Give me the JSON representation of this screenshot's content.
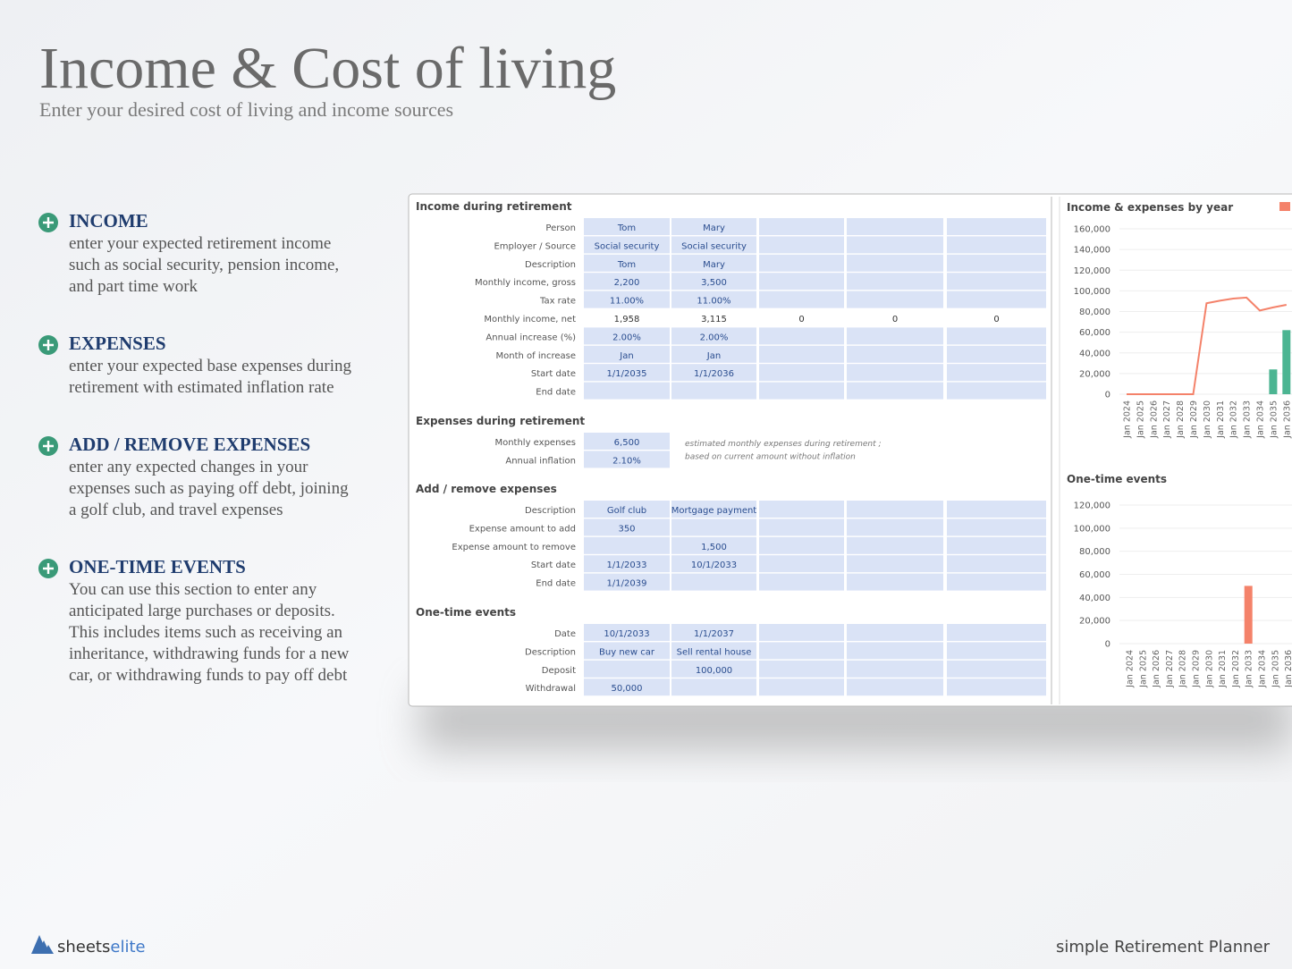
{
  "header": {
    "title": "Income & Cost of living",
    "subtitle": "Enter your desired cost of living and income sources"
  },
  "features": [
    {
      "title": "INCOME",
      "lines": [
        "enter your expected retirement income",
        "such as social security, pension income,",
        "and part time work"
      ]
    },
    {
      "title": "EXPENSES",
      "lines": [
        "enter your expected base expenses during",
        "retirement with estimated inflation rate"
      ]
    },
    {
      "title": "ADD / REMOVE EXPENSES",
      "lines": [
        "enter any expected changes in your",
        "expenses such as paying off debt, joining",
        "a golf club, and travel expenses"
      ]
    },
    {
      "title": "ONE-TIME EVENTS",
      "lines": [
        "You can use this section to enter any",
        "anticipated large purchases or deposits.",
        "This includes items such as receiving an",
        "inheritance, withdrawing funds for a new",
        "car, or withdrawing funds to pay off debt"
      ]
    }
  ],
  "sheet": {
    "sections": [
      {
        "title": "Income during retirement",
        "rows": [
          {
            "label": "Person",
            "cells": [
              "Tom",
              "Mary"
            ]
          },
          {
            "label": "Employer / Source",
            "cells": [
              "Social security",
              "Social security"
            ]
          },
          {
            "label": "Description",
            "cells": [
              "Tom",
              "Mary"
            ]
          },
          {
            "label": "Monthly income, gross",
            "cells": [
              "2,200",
              "3,500"
            ]
          },
          {
            "label": "Tax rate",
            "cells": [
              "11.00%",
              "11.00%"
            ]
          },
          {
            "label": "Monthly income, net",
            "cells": [
              "1,958",
              "3,115",
              "0",
              "0",
              "0"
            ]
          },
          {
            "label": "Annual increase (%)",
            "cells": [
              "2.00%",
              "2.00%"
            ]
          },
          {
            "label": "Month of increase",
            "cells": [
              "Jan",
              "Jan"
            ]
          },
          {
            "label": "Start date",
            "cells": [
              "1/1/2035",
              "1/1/2036"
            ]
          },
          {
            "label": "End date",
            "cells": []
          }
        ]
      },
      {
        "title": "Expenses during retirement",
        "rows": [
          {
            "label": "Monthly expenses",
            "cells": [
              "6,500"
            ]
          },
          {
            "label": "Annual inflation",
            "cells": [
              "2.10%"
            ]
          }
        ]
      },
      {
        "title": "Add / remove expenses",
        "rows": [
          {
            "label": "Description",
            "cells": [
              "Golf club",
              "Mortgage payment"
            ]
          },
          {
            "label": "Expense amount to add",
            "cells": [
              "350"
            ]
          },
          {
            "label": "Expense amount to remove",
            "cells": [
              null,
              "1,500"
            ]
          },
          {
            "label": "Start date",
            "cells": [
              "1/1/2033",
              "10/1/2033"
            ]
          },
          {
            "label": "End date",
            "cells": [
              "1/1/2039"
            ]
          }
        ]
      },
      {
        "title": "One-time events",
        "rows": [
          {
            "label": "Date",
            "cells": [
              "10/1/2033",
              "1/1/2037"
            ]
          },
          {
            "label": "Description",
            "cells": [
              "Buy new car",
              "Sell rental house"
            ]
          },
          {
            "label": "Deposit",
            "cells": [
              null,
              "100,000"
            ]
          },
          {
            "label": "Withdrawal",
            "cells": [
              "50,000"
            ]
          }
        ]
      }
    ],
    "note": [
      "estimated monthly expenses during retirement ;",
      "based on current amount without inflation"
    ]
  },
  "charts": [
    {
      "type": "combo",
      "title": "Income & expenses by year",
      "categories": [
        "Jan 2024",
        "Jan 2025",
        "Jan 2026",
        "Jan 2027",
        "Jan 2028",
        "Jan 2029",
        "Jan 2030",
        "Jan 2031",
        "Jan 2032",
        "Jan 2033",
        "Jan 2034",
        "Jan 2035",
        "Jan 2036"
      ],
      "series": [
        {
          "type": "line",
          "color": "#f4826a",
          "values": [
            0,
            0,
            0,
            0,
            0,
            0,
            88000,
            90500,
            92500,
            93500,
            81000,
            84000,
            86500
          ]
        },
        {
          "type": "bar",
          "color": "#4cb592",
          "values": [
            0,
            0,
            0,
            0,
            0,
            0,
            0,
            0,
            0,
            0,
            0,
            24000,
            62000
          ]
        }
      ],
      "ylim": [
        0,
        160000
      ],
      "yticks": [
        0,
        {
          "value": 20000,
          "label": "20,000"
        },
        {
          "value": 40000,
          "label": "40,000"
        },
        {
          "value": 60000,
          "label": "60,000"
        },
        {
          "value": 80000,
          "label": "80,000"
        },
        {
          "value": 100000,
          "label": "100,000"
        },
        {
          "value": 120000,
          "label": "120,000"
        },
        {
          "value": 140000,
          "label": "140,000"
        },
        {
          "value": 160000,
          "label": "160,000"
        }
      ]
    },
    {
      "type": "bar",
      "title": "One-time events",
      "categories": [
        "Jan 2024",
        "Jan 2025",
        "Jan 2026",
        "Jan 2027",
        "Jan 2028",
        "Jan 2029",
        "Jan 2030",
        "Jan 2031",
        "Jan 2032",
        "Jan 2033",
        "Jan 2034",
        "Jan 2035",
        "Jan 2036"
      ],
      "series": [
        {
          "type": "bar",
          "color": "#f4826a",
          "values": [
            0,
            0,
            0,
            0,
            0,
            0,
            0,
            0,
            0,
            50000,
            0,
            0,
            0
          ]
        }
      ],
      "ylim": [
        0,
        120000
      ],
      "yticks": [
        0,
        {
          "value": 20000,
          "label": "20,000"
        },
        {
          "value": 40000,
          "label": "40,000"
        },
        {
          "value": 60000,
          "label": "60,000"
        },
        {
          "value": 80000,
          "label": "80,000"
        },
        {
          "value": 100000,
          "label": "100,000"
        },
        {
          "value": 120000,
          "label": "120,000"
        }
      ]
    }
  ],
  "footer": {
    "brand_a": "sheets",
    "brand_b": "elite",
    "product": "simple Retirement Planner"
  }
}
